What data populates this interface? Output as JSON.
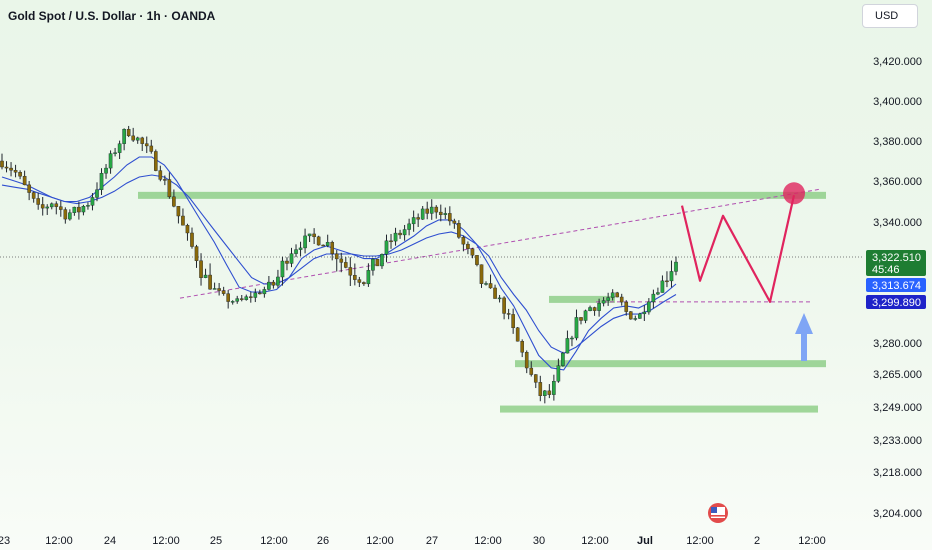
{
  "header": {
    "title": "Gold Spot / U.S. Dollar · 1h · OANDA",
    "currency": "USD"
  },
  "colors": {
    "bull": "#28a745",
    "bear": "#8a6a0a",
    "wick": "#20262e",
    "zone": "#8fcf8a",
    "ma": "#2f4fd0",
    "projection": "#e0245e",
    "trendline": "#b04fb0",
    "arrow": "#7fa5f5"
  },
  "chart_data": {
    "type": "candlestick",
    "symbol": "XAUUSD",
    "x_tick_labels": [
      "23",
      "12:00",
      "24",
      "12:00",
      "25",
      "12:00",
      "26",
      "12:00",
      "27",
      "12:00",
      "30",
      "12:00",
      "Jul",
      "12:00",
      "2",
      "12:00"
    ],
    "y_tick_labels": [
      "3,420.000",
      "3,400.000",
      "3,380.000",
      "3,360.000",
      "3,340.000",
      "3,280.000",
      "3,265.000",
      "3,249.000",
      "3,233.000",
      "3,218.000",
      "3,204.000"
    ],
    "price_labels": [
      {
        "text": "3,322.510",
        "sub": "45:46",
        "value": 3322.51,
        "color": "#1e7d32"
      },
      {
        "text": "3,313.674",
        "value": 3313.674,
        "color": "#2962ff"
      },
      {
        "text": "3,299.890",
        "value": 3299.89,
        "color": "#1e23c8"
      }
    ],
    "last_price": 3322.51,
    "close_path": [
      3370,
      3365,
      3355,
      3345,
      3350,
      3344,
      3345,
      3350,
      3362,
      3375,
      3386,
      3380,
      3372,
      3360,
      3345,
      3330,
      3318,
      3310,
      3302,
      3300,
      3305,
      3310,
      3315,
      3325,
      3330,
      3332,
      3330,
      3322,
      3318,
      3316,
      3320,
      3330,
      3335,
      3340,
      3345,
      3347,
      3340,
      3328,
      3318,
      3310,
      3300,
      3285,
      3270,
      3255,
      3255,
      3275,
      3290,
      3297,
      3300,
      3305,
      3295,
      3292,
      3305,
      3315,
      3322
    ],
    "ma_fast": [
      3362,
      3360,
      3358,
      3355,
      3352,
      3350,
      3350,
      3352,
      3357,
      3362,
      3368,
      3372,
      3372,
      3368,
      3360,
      3350,
      3340,
      3330,
      3320,
      3312,
      3308,
      3308,
      3310,
      3316,
      3322,
      3326,
      3328,
      3326,
      3324,
      3322,
      3322,
      3325,
      3329,
      3333,
      3338,
      3341,
      3341,
      3336,
      3329,
      3320,
      3311,
      3298,
      3286,
      3274,
      3268,
      3267,
      3276,
      3286,
      3292,
      3297,
      3298,
      3297,
      3300,
      3306,
      3314
    ],
    "ma_slow": [
      3358,
      3357,
      3356,
      3354,
      3352,
      3350,
      3349,
      3350,
      3352,
      3355,
      3359,
      3362,
      3363,
      3362,
      3358,
      3352,
      3344,
      3336,
      3328,
      3321,
      3316,
      3314,
      3314,
      3316,
      3319,
      3322,
      3324,
      3324,
      3324,
      3323,
      3323,
      3324,
      3326,
      3329,
      3332,
      3334,
      3335,
      3333,
      3329,
      3323,
      3316,
      3306,
      3296,
      3286,
      3278,
      3275,
      3278,
      3283,
      3288,
      3292,
      3294,
      3294,
      3296,
      3300,
      3306
    ],
    "zones": [
      {
        "value": 3353
      },
      {
        "value": 3302
      },
      {
        "value": 3270
      },
      {
        "value": 3248
      }
    ],
    "trendline": {
      "from": 3303,
      "to": 3356
    },
    "projection": [
      3348,
      3315,
      3343,
      3300,
      3353
    ],
    "dashed_level": 3300,
    "ylim": [
      3190,
      3435
    ],
    "grid": false
  }
}
